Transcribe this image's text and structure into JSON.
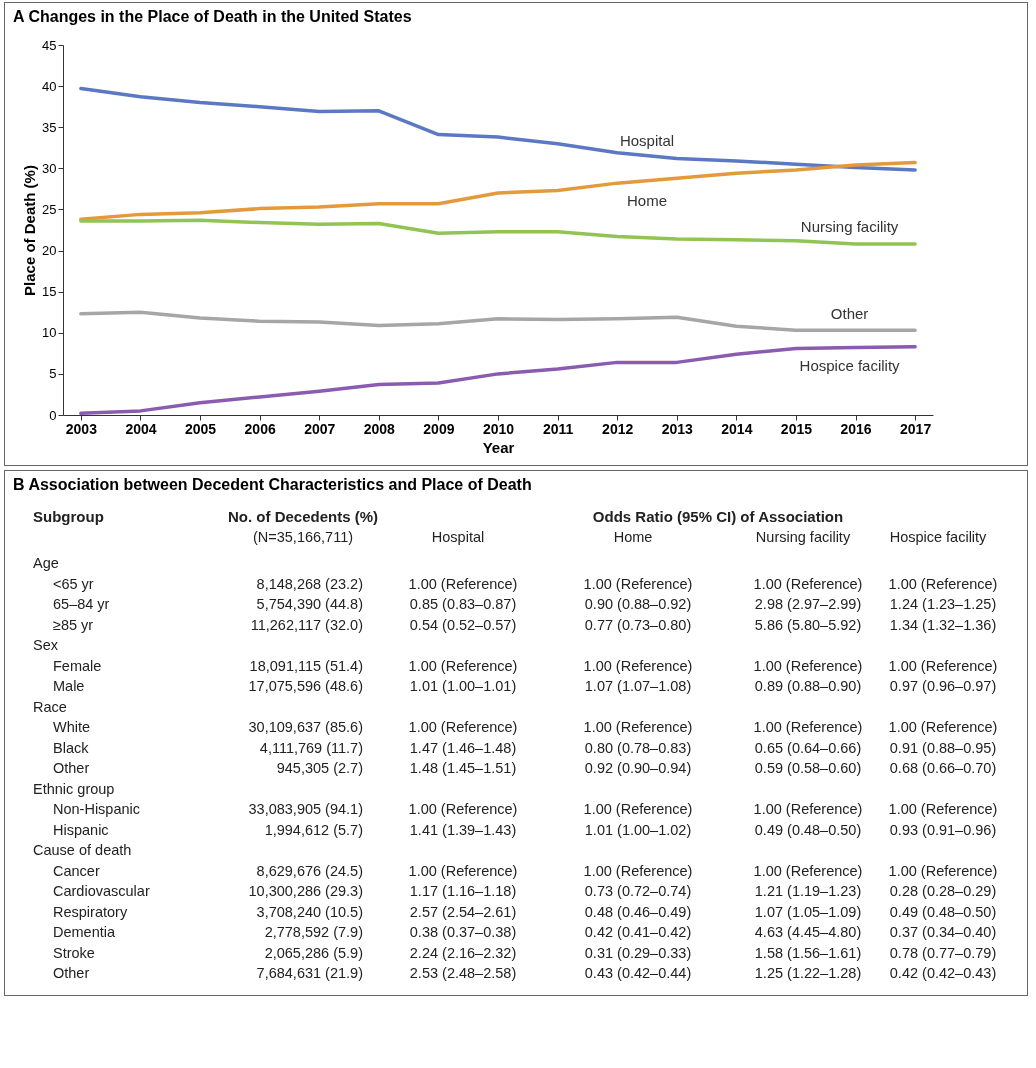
{
  "chart_data": [
    {
      "type": "line",
      "title": "A  Changes in the Place of Death in the United States",
      "xlabel": "Year",
      "ylabel": "Place of Death (%)",
      "categories": [
        "2003",
        "2004",
        "2005",
        "2006",
        "2007",
        "2008",
        "2009",
        "2010",
        "2011",
        "2012",
        "2013",
        "2014",
        "2015",
        "2016",
        "2017"
      ],
      "ylim": [
        0,
        45
      ],
      "yticks": [
        0,
        5,
        10,
        15,
        20,
        25,
        30,
        35,
        40,
        45
      ],
      "series": [
        {
          "name": "Hospital",
          "color": "#5b78c4",
          "values": [
            39.7,
            38.7,
            38.0,
            37.5,
            36.9,
            37.0,
            34.1,
            33.8,
            33.0,
            31.9,
            31.2,
            30.9,
            30.5,
            30.1,
            29.8
          ]
        },
        {
          "name": "Home",
          "color": "#e59a3a",
          "values": [
            23.8,
            24.4,
            24.6,
            25.1,
            25.3,
            25.7,
            25.7,
            27.0,
            27.3,
            28.2,
            28.8,
            29.4,
            29.8,
            30.4,
            30.7
          ]
        },
        {
          "name": "Nursing facility",
          "color": "#92c453",
          "values": [
            23.6,
            23.6,
            23.7,
            23.4,
            23.2,
            23.3,
            22.1,
            22.3,
            22.3,
            21.7,
            21.4,
            21.3,
            21.2,
            20.8,
            20.8
          ]
        },
        {
          "name": "Other",
          "color": "#a6a6a6",
          "values": [
            12.3,
            12.5,
            11.8,
            11.4,
            11.3,
            10.9,
            11.1,
            11.7,
            11.6,
            11.7,
            11.9,
            10.8,
            10.3,
            10.3,
            10.3
          ]
        },
        {
          "name": "Hospice facility",
          "color": "#8a5bb0",
          "values": [
            0.2,
            0.5,
            1.5,
            2.2,
            2.9,
            3.7,
            3.9,
            5.0,
            5.6,
            6.4,
            6.4,
            7.4,
            8.1,
            8.2,
            8.3
          ]
        }
      ]
    },
    {
      "type": "other",
      "title": "B  Association between Decedent Characteristics and Place of Death",
      "categories": [
        "Subgroup",
        "No. of Decedents (%)",
        "Hospital",
        "Home",
        "Nursing facility",
        "Hospice facility"
      ],
      "annotations": [
        "(N=35,166,711)",
        "Odds Ratio (95% CI) of Association"
      ],
      "y_categories": [
        "Age",
        "<65 yr",
        "65–84 yr",
        "≥85 yr",
        "Sex",
        "Female",
        "Male",
        "Race",
        "White",
        "Black",
        "Other",
        "Ethnic group",
        "Non-Hispanic",
        "Hispanic",
        "Cause of death",
        "Cancer",
        "Cardiovascular",
        "Respiratory",
        "Dementia",
        "Stroke",
        "Other"
      ],
      "cell_labels": [
        [
          null,
          null,
          null,
          null,
          null
        ],
        [
          "8,148,268 (23.2)",
          "1.00 (Reference)",
          "1.00 (Reference)",
          "1.00 (Reference)",
          "1.00 (Reference)"
        ],
        [
          "5,754,390 (44.8)",
          "0.85 (0.83–0.87)",
          "0.90 (0.88–0.92)",
          "2.98 (2.97–2.99)",
          "1.24 (1.23–1.25)"
        ],
        [
          "11,262,117 (32.0)",
          "0.54 (0.52–0.57)",
          "0.77 (0.73–0.80)",
          "5.86 (5.80–5.92)",
          "1.34 (1.32–1.36)"
        ],
        [
          null,
          null,
          null,
          null,
          null
        ],
        [
          "18,091,115 (51.4)",
          "1.00 (Reference)",
          "1.00 (Reference)",
          "1.00 (Reference)",
          "1.00 (Reference)"
        ],
        [
          "17,075,596 (48.6)",
          "1.01 (1.00–1.01)",
          "1.07 (1.07–1.08)",
          "0.89 (0.88–0.90)",
          "0.97 (0.96–0.97)"
        ],
        [
          null,
          null,
          null,
          null,
          null
        ],
        [
          "30,109,637 (85.6)",
          "1.00 (Reference)",
          "1.00 (Reference)",
          "1.00 (Reference)",
          "1.00 (Reference)"
        ],
        [
          "4,111,769 (11.7)",
          "1.47 (1.46–1.48)",
          "0.80 (0.78–0.83)",
          "0.65 (0.64–0.66)",
          "0.91 (0.88–0.95)"
        ],
        [
          "945,305 (2.7)",
          "1.48 (1.45–1.51)",
          "0.92 (0.90–0.94)",
          "0.59 (0.58–0.60)",
          "0.68 (0.66–0.70)"
        ],
        [
          null,
          null,
          null,
          null,
          null
        ],
        [
          "33,083,905 (94.1)",
          "1.00 (Reference)",
          "1.00 (Reference)",
          "1.00 (Reference)",
          "1.00 (Reference)"
        ],
        [
          "1,994,612 (5.7)",
          "1.41 (1.39–1.43)",
          "1.01 (1.00–1.02)",
          "0.49 (0.48–0.50)",
          "0.93 (0.91–0.96)"
        ],
        [
          null,
          null,
          null,
          null,
          null
        ],
        [
          "8,629,676 (24.5)",
          "1.00 (Reference)",
          "1.00 (Reference)",
          "1.00 (Reference)",
          "1.00 (Reference)"
        ],
        [
          "10,300,286 (29.3)",
          "1.17 (1.16–1.18)",
          "0.73 (0.72–0.74)",
          "1.21 (1.19–1.23)",
          "0.28 (0.28–0.29)"
        ],
        [
          "3,708,240 (10.5)",
          "2.57 (2.54–2.61)",
          "0.48 (0.46–0.49)",
          "1.07 (1.05–1.09)",
          "0.49 (0.48–0.50)"
        ],
        [
          "2,778,592 (7.9)",
          "0.38 (0.37–0.38)",
          "0.42 (0.41–0.42)",
          "4.63 (4.45–4.80)",
          "0.37 (0.34–0.40)"
        ],
        [
          "2,065,286 (5.9)",
          "2.24 (2.16–2.32)",
          "0.31 (0.29–0.33)",
          "1.58 (1.56–1.61)",
          "0.78 (0.77–0.79)"
        ],
        [
          "7,684,631 (21.9)",
          "2.53 (2.48–2.58)",
          "0.43 (0.42–0.44)",
          "1.25 (1.22–1.28)",
          "0.42 (0.42–0.43)"
        ]
      ]
    }
  ]
}
